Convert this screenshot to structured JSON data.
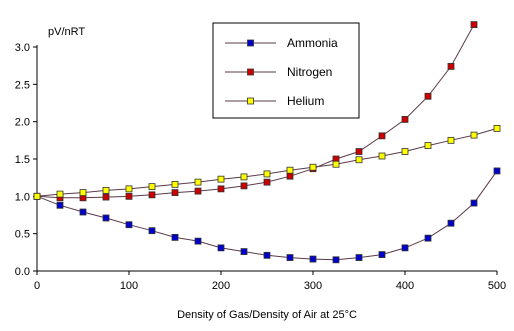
{
  "chart_data": {
    "type": "line",
    "title": "",
    "xlabel": "Density of Gas/Density of Air at 25°C",
    "ylabel": "pV/nRT",
    "xlim": [
      0,
      500
    ],
    "ylim": [
      0,
      3.0
    ],
    "xticks": [
      0,
      100,
      200,
      300,
      400,
      500
    ],
    "yticks": [
      0.0,
      0.5,
      1.0,
      1.5,
      2.0,
      2.5,
      3.0
    ],
    "xtick_labels": [
      "0",
      "100",
      "200",
      "300",
      "400",
      "500"
    ],
    "ytick_labels": [
      "0.0",
      "0.5",
      "1.0",
      "1.5",
      "2.0",
      "2.5",
      "3.0"
    ],
    "grid": false,
    "legend_position": "top-center",
    "series": [
      {
        "name": "Ammonia",
        "color": "#0000cc",
        "marker": "square",
        "x": [
          0,
          25,
          50,
          75,
          100,
          125,
          150,
          175,
          200,
          225,
          250,
          275,
          300,
          325,
          350,
          375,
          400,
          425,
          450,
          475,
          500
        ],
        "y": [
          1.0,
          0.88,
          0.79,
          0.71,
          0.62,
          0.54,
          0.45,
          0.4,
          0.31,
          0.26,
          0.21,
          0.18,
          0.16,
          0.15,
          0.18,
          0.22,
          0.31,
          0.44,
          0.64,
          0.91,
          1.34
        ]
      },
      {
        "name": "Nitrogen",
        "color": "#cc0000",
        "marker": "square",
        "x": [
          0,
          25,
          50,
          75,
          100,
          125,
          150,
          175,
          200,
          225,
          250,
          275,
          300,
          325,
          350,
          375,
          400,
          425,
          450,
          475
        ],
        "y": [
          1.0,
          0.98,
          0.98,
          0.99,
          1.0,
          1.02,
          1.05,
          1.07,
          1.1,
          1.14,
          1.19,
          1.27,
          1.37,
          1.5,
          1.6,
          1.81,
          2.03,
          2.34,
          2.74,
          3.3
        ]
      },
      {
        "name": "Helium",
        "color": "#ffff00",
        "marker": "square",
        "x": [
          0,
          25,
          50,
          75,
          100,
          125,
          150,
          175,
          200,
          225,
          250,
          275,
          300,
          325,
          350,
          375,
          400,
          425,
          450,
          475,
          500
        ],
        "y": [
          1.0,
          1.03,
          1.05,
          1.08,
          1.1,
          1.13,
          1.16,
          1.19,
          1.23,
          1.26,
          1.3,
          1.35,
          1.39,
          1.43,
          1.49,
          1.54,
          1.6,
          1.68,
          1.75,
          1.82,
          1.91
        ]
      }
    ]
  }
}
